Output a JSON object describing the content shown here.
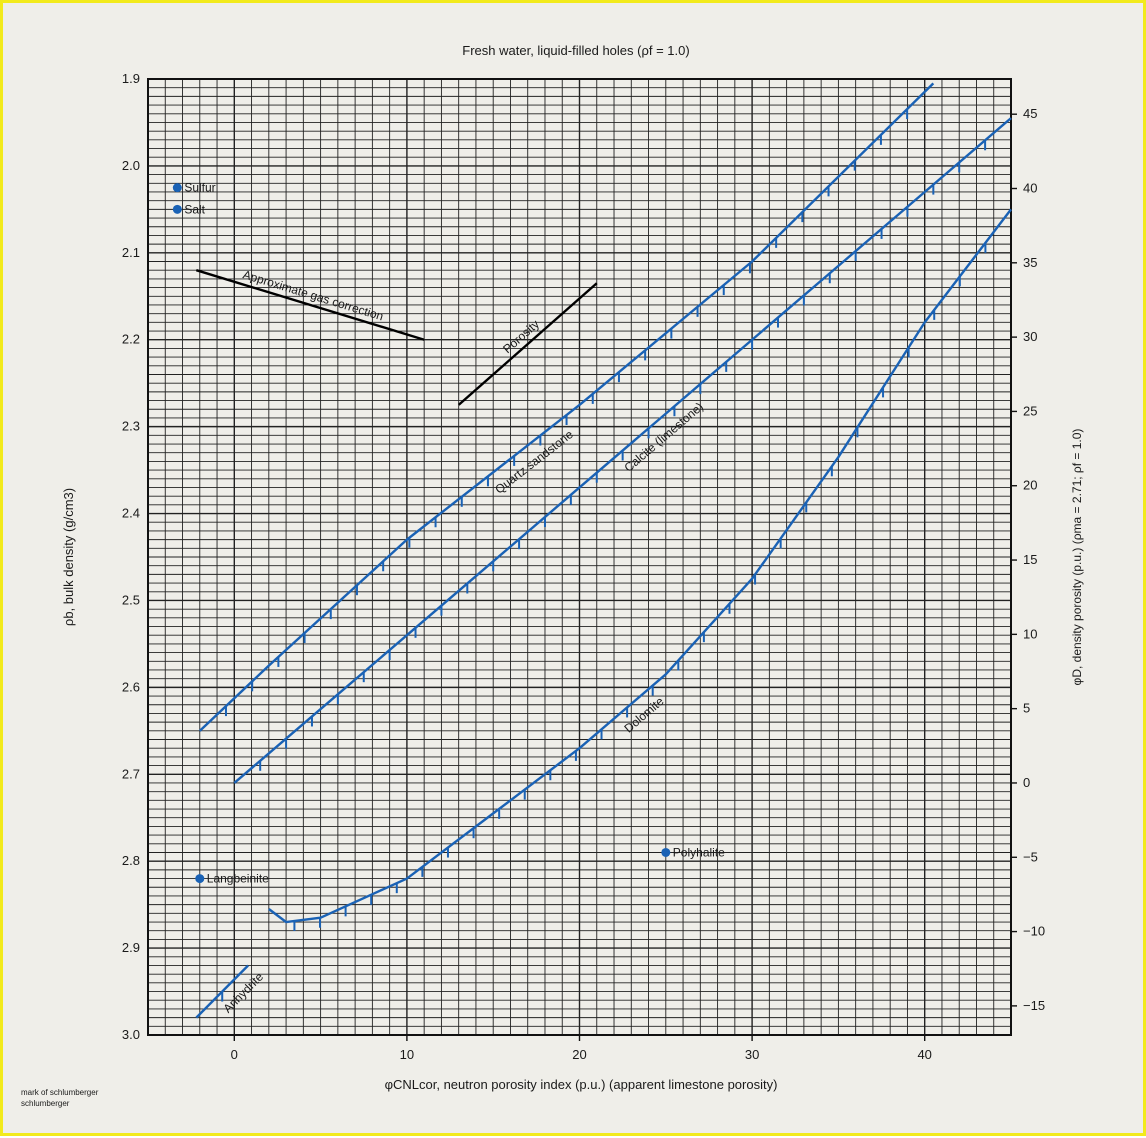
{
  "chart_data": {
    "type": "line",
    "title": "Fresh water, liquid-filled holes (ρf = 1.0)",
    "xlabel": "φCNLcor, neutron porosity index (p.u.) (apparent limestone porosity)",
    "ylabel": "ρb, bulk density (g/cm3)",
    "y2label": "φD, density porosity (p.u.) (ρma = 2.71; ρf = 1.0)",
    "xlim": [
      -5,
      45
    ],
    "ylim": [
      1.9,
      3.0
    ],
    "y_inverted": true,
    "grid": true,
    "x_ticks": [
      "0",
      "10",
      "20",
      "30",
      "40"
    ],
    "y_ticks": [
      "1.9",
      "2.0",
      "2.1",
      "2.2",
      "2.3",
      "2.4",
      "2.5",
      "2.6",
      "2.7",
      "2.8",
      "2.9",
      "3.0"
    ],
    "y2_ticks": [
      "45",
      "40",
      "35",
      "30",
      "25",
      "20",
      "15",
      "10",
      "5",
      "0",
      "−5",
      "−10",
      "−15"
    ],
    "series": [
      {
        "name": "Quartz sandstone",
        "color": "#1a62b5",
        "x": [
          -2,
          2,
          10,
          20,
          30,
          40.5
        ],
        "y": [
          2.65,
          2.575,
          2.43,
          2.275,
          2.11,
          1.905
        ],
        "porosity_labels": [
          "0",
          "5",
          "10",
          "15",
          "20",
          "25",
          "30",
          "35",
          "40"
        ]
      },
      {
        "name": "Calcite (limestone)",
        "color": "#1a62b5",
        "x": [
          0,
          5,
          10,
          15,
          20,
          25,
          30,
          35,
          40,
          45
        ],
        "y": [
          2.71,
          2.625,
          2.54,
          2.455,
          2.37,
          2.285,
          2.2,
          2.115,
          2.03,
          1.945
        ],
        "porosity_labels": [
          "0",
          "5",
          "10",
          "15",
          "20",
          "25",
          "30",
          "35",
          "40",
          "45"
        ]
      },
      {
        "name": "Dolomite",
        "color": "#1a62b5",
        "x": [
          2,
          3,
          5,
          10,
          15,
          20,
          25,
          30,
          35,
          40,
          45
        ],
        "y": [
          2.855,
          2.87,
          2.865,
          2.82,
          2.745,
          2.67,
          2.585,
          2.475,
          2.335,
          2.18,
          2.05
        ],
        "porosity_labels": [
          "0",
          "5",
          "10",
          "15",
          "20",
          "25",
          "30",
          "35",
          "40"
        ]
      },
      {
        "name": "Anhydrite",
        "color": "#1a62b5",
        "x": [
          -2.2,
          0.8
        ],
        "y": [
          2.98,
          2.92
        ],
        "porosity_labels": [
          "0"
        ]
      }
    ],
    "points": [
      {
        "name": "Sulfur",
        "x": -3.3,
        "y": 2.025,
        "color": "#1a62b5"
      },
      {
        "name": "Salt",
        "x": -3.3,
        "y": 2.05,
        "color": "#1a62b5"
      },
      {
        "name": "Langbeinite",
        "x": -2,
        "y": 2.82,
        "color": "#1a62b5"
      },
      {
        "name": "Polyhalite",
        "x": 25,
        "y": 2.79,
        "color": "#1a62b5"
      }
    ],
    "annotations": [
      {
        "text": "Approximate gas correction",
        "x": [
          -2.2,
          11
        ],
        "y": [
          2.12,
          2.2
        ]
      },
      {
        "text": "Porosity",
        "x": [
          13,
          21
        ],
        "y": [
          2.275,
          2.135
        ]
      }
    ],
    "credit": [
      "mark of schlumberger",
      "schlumberger"
    ]
  }
}
